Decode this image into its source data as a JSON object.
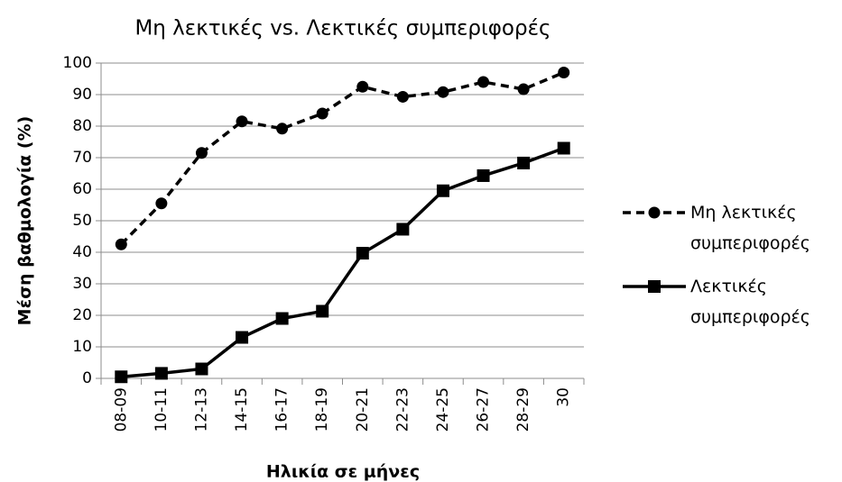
{
  "chart_data": {
    "type": "line",
    "title": "Μη λεκτικές vs. Λεκτικές συμπεριφορές",
    "x_label": "Ηλικία σε μήνες",
    "y_label": "Μέση βαθμολογία (%)",
    "categories": [
      "08-09",
      "10-11",
      "12-13",
      "14-15",
      "16-17",
      "18-19",
      "20-21",
      "22-23",
      "24-25",
      "26-27",
      "28-29",
      "30"
    ],
    "series": [
      {
        "name": "Μη λεκτικές συμπεριφορές",
        "color": "#000000",
        "linestyle": "dashed",
        "marker": "circle",
        "values": [
          42.5,
          55.5,
          71.5,
          81.5,
          79.2,
          84,
          92.5,
          89.3,
          90.8,
          94,
          91.7,
          97
        ]
      },
      {
        "name": "Λεκτικές συμπεριφορές",
        "color": "#000000",
        "linestyle": "solid",
        "marker": "square",
        "values": [
          0.5,
          1.6,
          3,
          13,
          19,
          21.3,
          39.7,
          47.3,
          59.5,
          64.3,
          68.3,
          73
        ]
      }
    ],
    "ylim": [
      0,
      100
    ],
    "yticks": [
      0,
      10,
      20,
      30,
      40,
      50,
      60,
      70,
      80,
      90,
      100
    ],
    "grid": true,
    "legend": "right"
  }
}
